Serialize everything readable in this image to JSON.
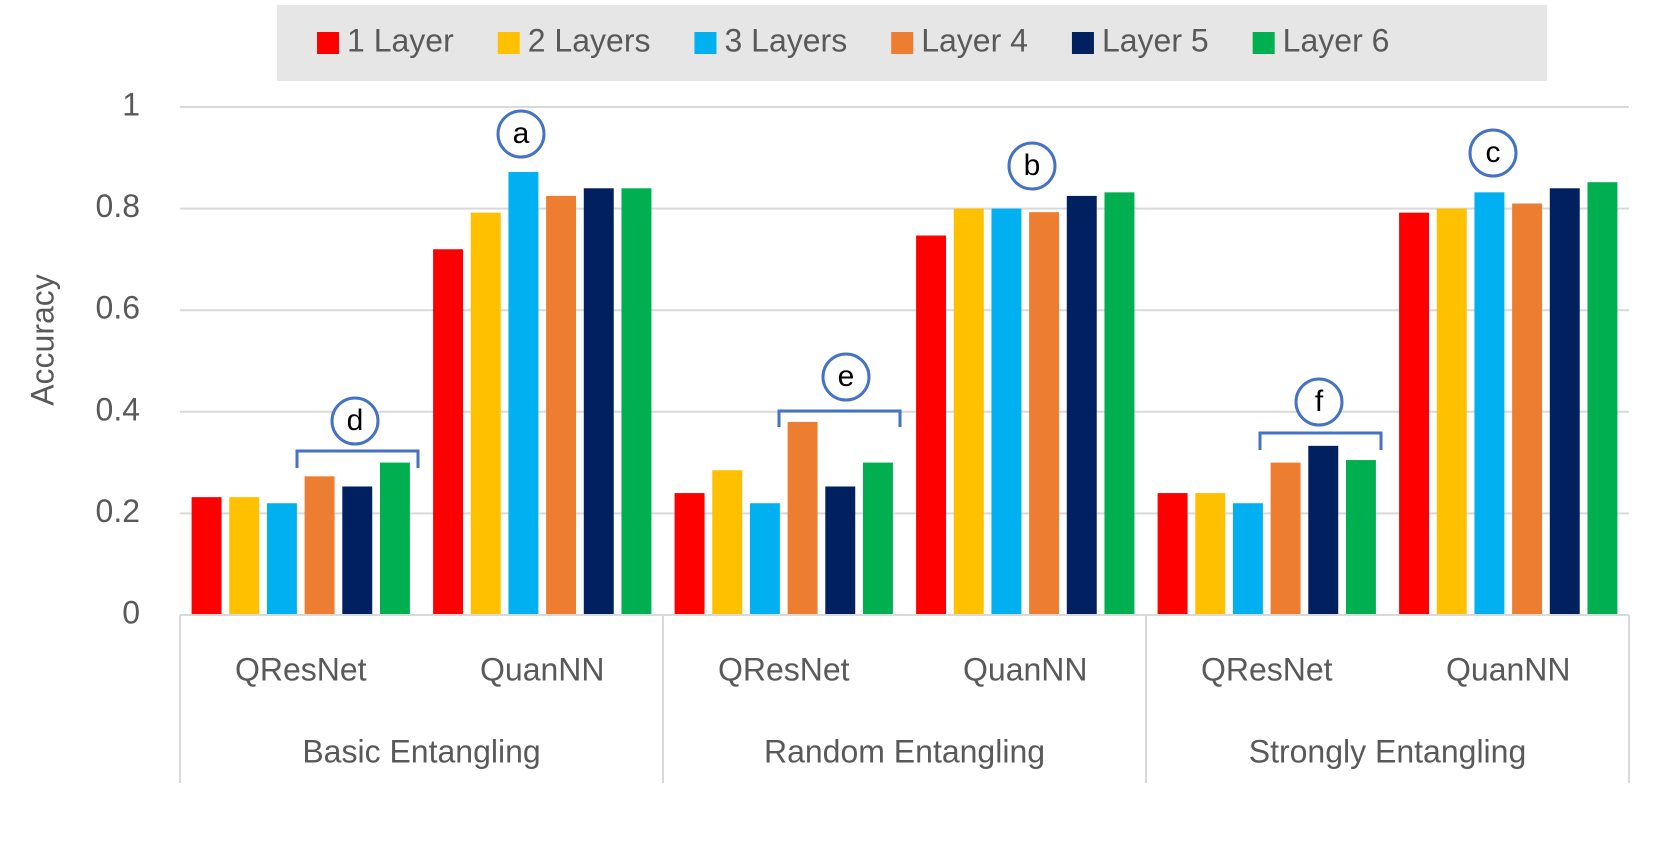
{
  "chart_data": {
    "type": "bar",
    "y_label": "Accuracy",
    "categories": [
      "QResNet",
      "QuanNN",
      "QResNet",
      "QuanNN",
      "QResNet",
      "QuanNN"
    ],
    "groups": [
      "Basic Entangling",
      "Random Entangling",
      "Strongly Entangling"
    ],
    "series": [
      {
        "name": "1 Layer",
        "color": "#ff0000",
        "values": [
          0.232,
          0.72,
          0.24,
          0.747,
          0.24,
          0.792
        ]
      },
      {
        "name": "2 Layers",
        "color": "#ffc000",
        "values": [
          0.232,
          0.792,
          0.285,
          0.8,
          0.24,
          0.8
        ]
      },
      {
        "name": "3 Layers",
        "color": "#00b0f0",
        "values": [
          0.22,
          0.872,
          0.22,
          0.8,
          0.22,
          0.832
        ]
      },
      {
        "name": "Layer 4",
        "color": "#ed7d31",
        "values": [
          0.273,
          0.825,
          0.38,
          0.793,
          0.3,
          0.81
        ]
      },
      {
        "name": "Layer 5",
        "color": "#002060",
        "values": [
          0.253,
          0.84,
          0.253,
          0.825,
          0.333,
          0.84
        ]
      },
      {
        "name": "Layer 6",
        "color": "#00b050",
        "values": [
          0.3,
          0.84,
          0.3,
          0.832,
          0.305,
          0.852
        ]
      }
    ],
    "ylim": [
      0,
      1
    ],
    "yticks": [
      0,
      0.2,
      0.4,
      0.6,
      0.8,
      1
    ],
    "grid": true,
    "legend": "top",
    "annotations": [
      "a",
      "b",
      "c",
      "d",
      "e",
      "f"
    ]
  }
}
